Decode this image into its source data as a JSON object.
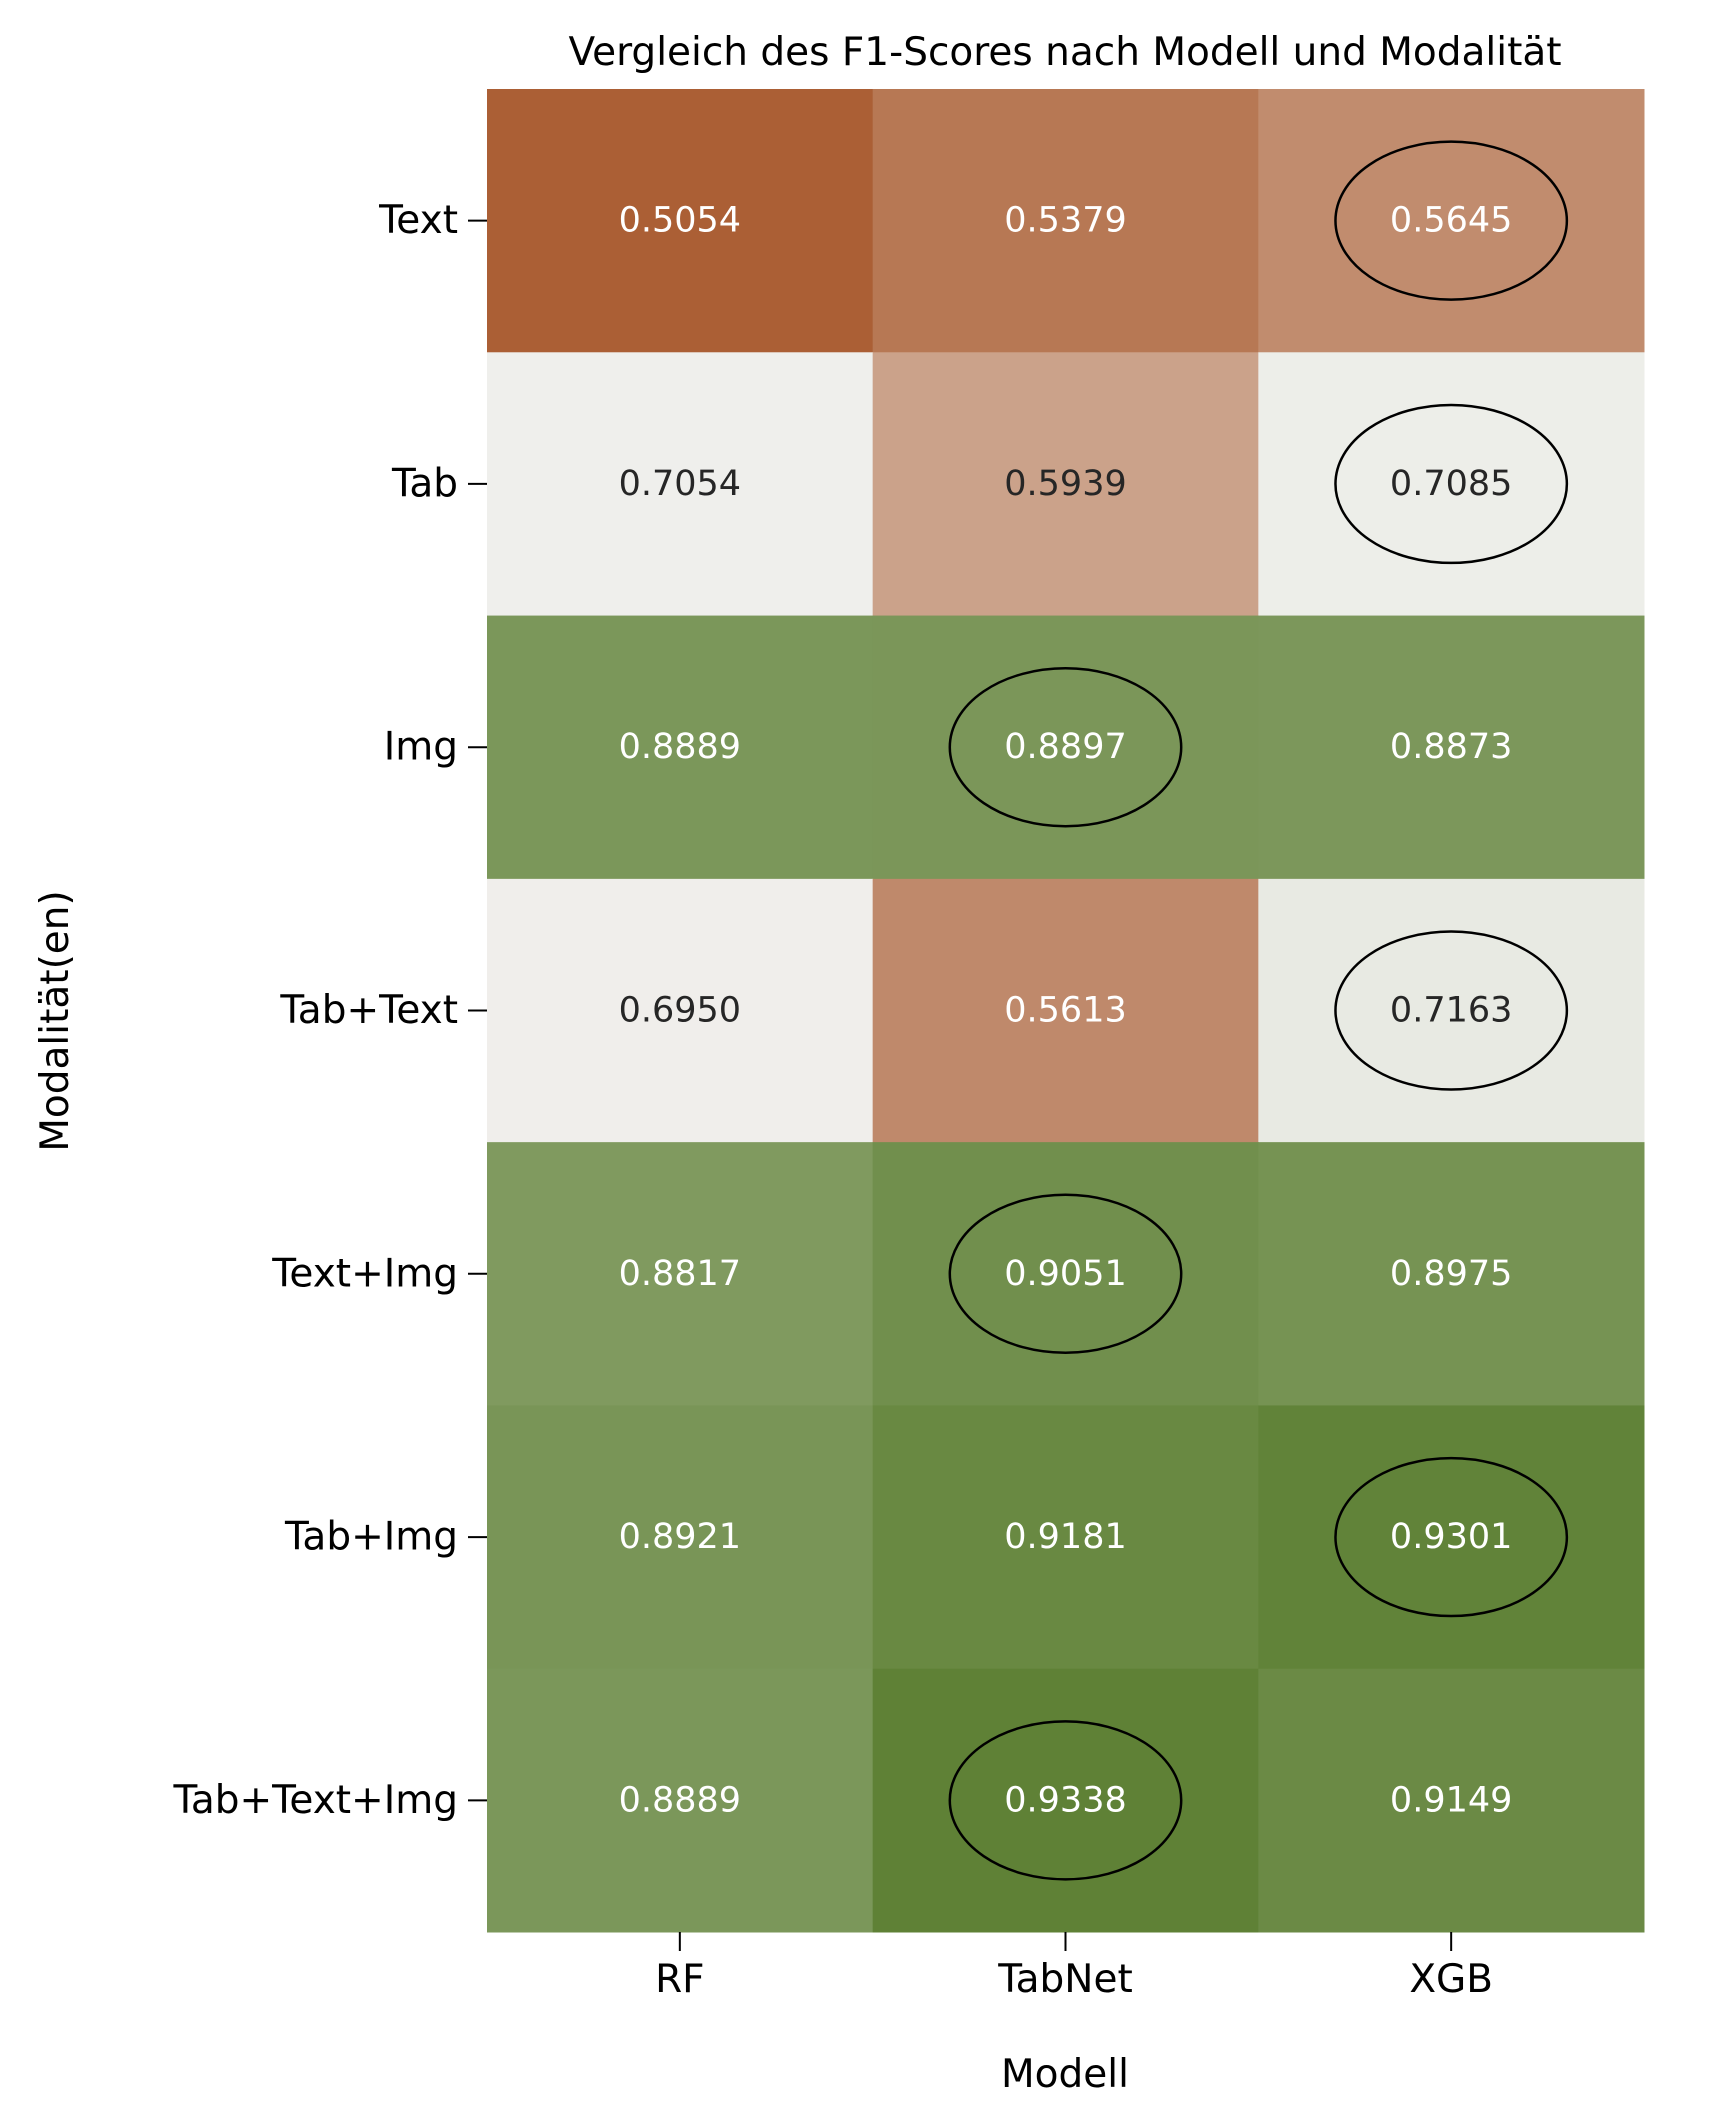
{
  "chart_data": {
    "type": "heatmap",
    "title": "Vergleich des F1-Scores nach Modell und Modalität",
    "xlabel": "Modell",
    "ylabel": "Modalität(en)",
    "x_categories": [
      "RF",
      "TabNet",
      "XGB"
    ],
    "y_categories": [
      "Text",
      "Tab",
      "Img",
      "Tab+Text",
      "Text+Img",
      "Tab+Img",
      "Tab+Text+Img"
    ],
    "values": [
      [
        0.5054,
        0.5379,
        0.5645
      ],
      [
        0.7054,
        0.5939,
        0.7085
      ],
      [
        0.8889,
        0.8897,
        0.8873
      ],
      [
        0.695,
        0.5613,
        0.7163
      ],
      [
        0.8817,
        0.9051,
        0.8975
      ],
      [
        0.8921,
        0.9181,
        0.9301
      ],
      [
        0.8889,
        0.9338,
        0.9149
      ]
    ],
    "value_labels": [
      [
        "0.5054",
        "0.5379",
        "0.5645"
      ],
      [
        "0.7054",
        "0.5939",
        "0.7085"
      ],
      [
        "0.8889",
        "0.8897",
        "0.8873"
      ],
      [
        "0.6950",
        "0.5613",
        "0.7163"
      ],
      [
        "0.8817",
        "0.9051",
        "0.8975"
      ],
      [
        "0.8921",
        "0.9181",
        "0.9301"
      ],
      [
        "0.8889",
        "0.9338",
        "0.9149"
      ]
    ],
    "highlighted_best": [
      2,
      2,
      1,
      2,
      1,
      2,
      1
    ],
    "colormap": {
      "low": "#ab5f35",
      "mid": "#f2f2f0",
      "high": "#5f8136",
      "center": 0.7
    },
    "value_range": [
      0.5054,
      0.9338
    ],
    "grid": false,
    "legend": "none"
  }
}
